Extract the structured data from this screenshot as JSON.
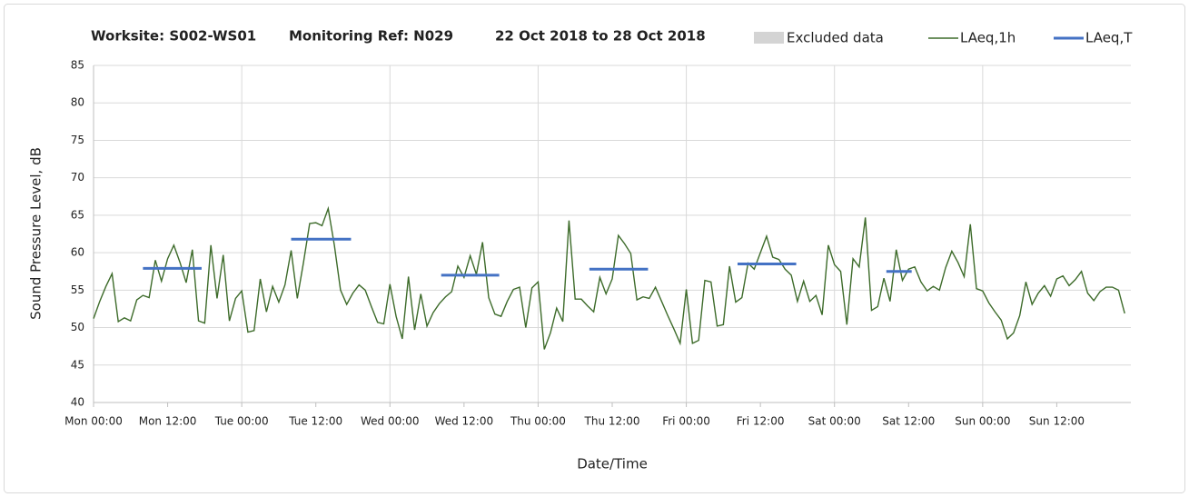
{
  "chart_data": {
    "type": "line",
    "title_parts": [
      "Worksite: S002-WS01",
      "Monitoring Ref: N029",
      "22 Oct 2018 to 28 Oct 2018"
    ],
    "xlabel": "Date/Time",
    "ylabel": "Sound Pressure Level, dB",
    "xlim": [
      0,
      168
    ],
    "ylim": [
      40,
      85
    ],
    "yticks": [
      40,
      45,
      50,
      55,
      60,
      65,
      70,
      75,
      80,
      85
    ],
    "xticks": [
      {
        "value": 0,
        "label": "Mon 00:00"
      },
      {
        "value": 12,
        "label": "Mon 12:00"
      },
      {
        "value": 24,
        "label": "Tue 00:00"
      },
      {
        "value": 36,
        "label": "Tue 12:00"
      },
      {
        "value": 48,
        "label": "Wed 00:00"
      },
      {
        "value": 60,
        "label": "Wed 12:00"
      },
      {
        "value": 72,
        "label": "Thu 00:00"
      },
      {
        "value": 84,
        "label": "Thu 12:00"
      },
      {
        "value": 96,
        "label": "Fri 00:00"
      },
      {
        "value": 108,
        "label": "Fri 12:00"
      },
      {
        "value": 120,
        "label": "Sat 00:00"
      },
      {
        "value": 132,
        "label": "Sat 12:00"
      },
      {
        "value": 144,
        "label": "Sun 00:00"
      },
      {
        "value": 156,
        "label": "Sun 12:00"
      }
    ],
    "grid": true,
    "excluded": {
      "name": "Excluded data",
      "color": "#d4d4d4"
    },
    "series": [
      {
        "name": "LAeq,1h",
        "color": "#3d6b2a",
        "values": [
          51.2,
          53.5,
          55.5,
          57.2,
          50.8,
          51.3,
          50.9,
          53.7,
          54.3,
          54.0,
          59.0,
          56.2,
          59.2,
          61.0,
          58.7,
          56.0,
          60.4,
          50.9,
          50.6,
          61.0,
          53.9,
          59.7,
          50.9,
          53.9,
          54.9,
          49.4,
          49.6,
          56.5,
          52.1,
          55.5,
          53.4,
          55.7,
          60.3,
          53.9,
          58.7,
          63.9,
          64.0,
          63.6,
          65.9,
          61.0,
          55.0,
          53.1,
          54.6,
          55.7,
          55.0,
          52.8,
          50.7,
          50.5,
          55.8,
          51.5,
          48.5,
          56.8,
          49.7,
          54.5,
          50.2,
          52.0,
          53.2,
          54.1,
          54.8,
          58.2,
          56.7,
          59.6,
          57.1,
          61.4,
          54.0,
          51.8,
          51.5,
          53.5,
          55.1,
          55.4,
          50.0,
          55.3,
          56.1,
          47.1,
          49.3,
          52.6,
          50.8,
          64.3,
          53.8,
          53.8,
          52.9,
          52.1,
          56.7,
          54.5,
          56.5,
          62.3,
          61.2,
          59.9,
          53.7,
          54.1,
          53.9,
          55.4,
          53.5,
          51.6,
          49.8,
          47.9,
          55.1,
          47.9,
          48.3,
          56.3,
          56.1,
          50.2,
          50.4,
          58.2,
          53.4,
          54.0,
          58.6,
          57.8,
          60.0,
          62.2,
          59.4,
          59.1,
          57.8,
          57.0,
          53.5,
          56.2,
          53.5,
          54.3,
          51.7,
          61.0,
          58.4,
          57.5,
          50.4,
          59.2,
          58.1,
          64.7,
          52.3,
          52.8,
          56.6,
          53.5,
          60.4,
          56.3,
          57.8,
          58.1,
          56.1,
          54.9,
          55.5,
          55.0,
          58.0,
          60.2,
          58.7,
          56.8,
          63.8,
          55.2,
          54.9,
          53.3,
          52.1,
          51.0,
          48.5,
          49.3,
          51.6,
          56.1,
          53.1,
          54.6,
          55.6,
          54.2,
          56.5,
          56.9,
          55.6,
          56.4,
          57.5,
          54.6,
          53.6,
          54.8,
          55.4,
          55.4,
          55.0,
          51.9
        ]
      },
      {
        "name": "LAeq,T",
        "color": "#4472c4",
        "segments": [
          {
            "x": [
              8,
              17.5
            ],
            "value": 57.9
          },
          {
            "x": [
              32,
              41.7
            ],
            "value": 61.8
          },
          {
            "x": [
              56.3,
              65.7
            ],
            "value": 57.0
          },
          {
            "x": [
              80.3,
              89.8
            ],
            "value": 57.8
          },
          {
            "x": [
              104.3,
              113.8
            ],
            "value": 58.5
          },
          {
            "x": [
              128.4,
              132.5
            ],
            "value": 57.5
          }
        ]
      }
    ]
  }
}
